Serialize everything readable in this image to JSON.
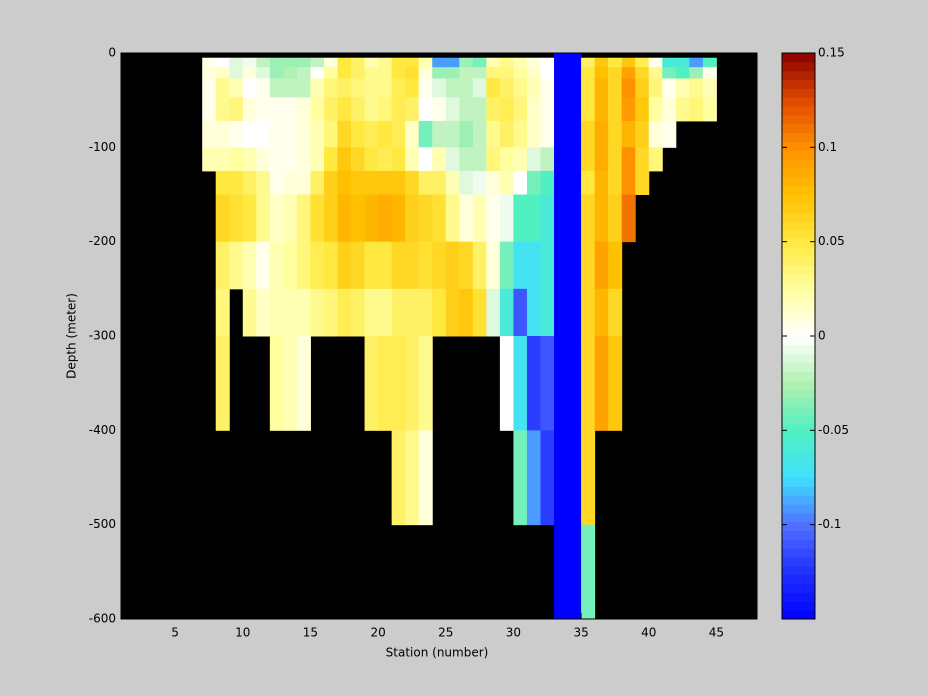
{
  "chart_data": {
    "type": "heatmap",
    "xlabel": "Station (number)",
    "ylabel": "Depth (meter)",
    "xlim": [
      1,
      48
    ],
    "ylim": [
      -600,
      0
    ],
    "xticks": [
      5,
      10,
      15,
      20,
      25,
      30,
      35,
      40,
      45
    ],
    "yticks": [
      0,
      -100,
      -200,
      -300,
      -400,
      -500,
      -600
    ],
    "clim": [
      -0.15,
      0.15
    ],
    "cticks": [
      -0.1,
      -0.05,
      0,
      0.05,
      0.1,
      0.15
    ],
    "colormap": [
      "#0000ff",
      "#2030ff",
      "#5070ff",
      "#40e0ff",
      "#50f0c0",
      "#b0f0b0",
      "#ffffff",
      "#ffffa0",
      "#ffe840",
      "#ffc000",
      "#ff9000",
      "#e04800",
      "#880000"
    ],
    "background": "#000000",
    "x_edges": [
      7,
      8,
      9,
      10,
      11,
      12,
      13,
      14,
      15,
      16,
      17,
      18,
      19,
      20,
      21,
      22,
      23,
      24,
      25,
      26,
      27,
      28,
      29,
      30,
      31,
      32,
      33,
      34,
      35,
      36,
      37,
      38,
      39,
      40,
      41,
      42,
      43,
      44,
      45
    ],
    "y_edges": [
      -5,
      -15,
      -27,
      -47,
      -72,
      -100,
      -125,
      -150,
      -200,
      -250,
      -300,
      -400,
      -500,
      -600
    ],
    "values": [
      [
        0.005,
        0.01,
        0.005,
        0.005,
        0.01,
        0.02,
        null,
        null,
        null,
        null,
        null,
        null,
        null
      ],
      [
        0,
        0.015,
        0.03,
        0.03,
        0.01,
        0.02,
        0.05,
        0.06,
        0.04,
        0.035,
        0.04,
        null,
        null
      ],
      [
        -0.01,
        -0.01,
        0.02,
        0.035,
        0.005,
        0.025,
        0.05,
        0.055,
        0.03,
        null,
        null,
        null,
        null
      ],
      [
        -0.005,
        0.01,
        0,
        0.01,
        0,
        0.02,
        0.04,
        0.05,
        0.02,
        0.03,
        null,
        null,
        null
      ],
      [
        -0.02,
        -0.01,
        0.005,
        0.005,
        0,
        0.01,
        0.03,
        0.03,
        0.005,
        0.015,
        null,
        null,
        null
      ],
      [
        -0.03,
        -0.03,
        -0.02,
        0.005,
        0.005,
        0.005,
        0.005,
        0.015,
        0.02,
        0.02,
        0.025,
        null,
        null
      ],
      [
        -0.03,
        -0.025,
        -0.02,
        0.005,
        0.005,
        0.005,
        0.01,
        0.02,
        0.025,
        0.02,
        0.02,
        null,
        null
      ],
      [
        -0.03,
        -0.02,
        -0.02,
        0.01,
        0.01,
        0.01,
        0.01,
        0.035,
        0.035,
        0.02,
        0.01,
        null,
        null
      ],
      [
        -0.02,
        0,
        0.02,
        0.025,
        0.02,
        0.02,
        0.04,
        0.055,
        0.045,
        0.03,
        null,
        null,
        null
      ],
      [
        0.01,
        0.025,
        0.035,
        0.04,
        0.035,
        0.05,
        0.065,
        0.065,
        0.05,
        0.035,
        null,
        null,
        null
      ],
      [
        0.05,
        0.05,
        0.04,
        0.05,
        0.06,
        0.07,
        0.075,
        0.08,
        0.065,
        0.045,
        null,
        null,
        null
      ],
      [
        0.04,
        0.04,
        0.035,
        0.04,
        0.05,
        0.06,
        0.07,
        0.075,
        0.06,
        0.04,
        null,
        null,
        null
      ],
      [
        0.02,
        0.03,
        0.03,
        0.03,
        0.045,
        0.05,
        0.07,
        0.08,
        0.05,
        0.03,
        0.04,
        null,
        null
      ],
      [
        0.03,
        0.03,
        0.03,
        0.035,
        0.05,
        0.045,
        0.07,
        0.085,
        0.05,
        0.03,
        0.045,
        null,
        null
      ],
      [
        0.05,
        0.05,
        0.045,
        0.045,
        0.045,
        0.05,
        0.07,
        0.08,
        0.06,
        0.04,
        0.045,
        0.04,
        null
      ],
      [
        0.05,
        0.055,
        0.05,
        0.04,
        0.015,
        0.02,
        0.06,
        0.065,
        0.06,
        0.04,
        0.04,
        0.03,
        null
      ],
      [
        0.02,
        0.01,
        0.005,
        0,
        -0.04,
        0,
        0.04,
        0.06,
        0.055,
        0.04,
        0.03,
        0.01,
        null
      ],
      [
        -0.09,
        -0.03,
        -0.01,
        0.005,
        -0.02,
        0.02,
        0.04,
        0.055,
        0.06,
        0.05,
        null,
        null,
        null
      ],
      [
        -0.09,
        -0.03,
        -0.02,
        -0.01,
        -0.02,
        -0.01,
        0.02,
        0.03,
        0.065,
        0.065,
        null,
        null,
        null
      ],
      [
        -0.03,
        -0.02,
        -0.02,
        -0.02,
        -0.03,
        -0.02,
        -0.01,
        0.01,
        0.06,
        0.07,
        null,
        null,
        null
      ],
      [
        -0.04,
        -0.02,
        -0.01,
        -0.02,
        -0.02,
        -0.02,
        -0.005,
        0.02,
        0.04,
        0.055,
        null,
        null,
        null
      ],
      [
        0.02,
        0.035,
        0.05,
        0.04,
        0.03,
        0.035,
        0.01,
        0.005,
        0.01,
        -0.01,
        null,
        null,
        null
      ],
      [
        0.03,
        0.035,
        0.04,
        0.045,
        0.04,
        0.025,
        0.02,
        -0.005,
        -0.04,
        -0.06,
        0,
        null,
        null
      ],
      [
        0.02,
        0.025,
        0.03,
        0.035,
        0.03,
        0.02,
        0,
        -0.05,
        -0.07,
        -0.11,
        -0.07,
        -0.04,
        null
      ],
      [
        0.01,
        0.015,
        0.02,
        0.015,
        0.015,
        -0.01,
        -0.04,
        -0.05,
        -0.07,
        -0.07,
        -0.12,
        -0.09,
        null
      ],
      [
        0,
        0,
        0.005,
        0.005,
        0.005,
        -0.02,
        -0.05,
        -0.06,
        -0.06,
        -0.06,
        -0.11,
        -0.12,
        null
      ],
      [
        -0.15,
        -0.15,
        -0.15,
        -0.15,
        -0.15,
        -0.15,
        -0.15,
        -0.15,
        -0.15,
        -0.15,
        -0.15,
        -0.15,
        -0.15
      ],
      [
        -0.15,
        -0.15,
        -0.15,
        -0.15,
        -0.15,
        -0.15,
        -0.15,
        -0.15,
        -0.15,
        -0.15,
        -0.15,
        -0.15,
        -0.15
      ],
      [
        0.04,
        0.05,
        0.05,
        0.05,
        0.06,
        0.06,
        0.05,
        0.06,
        0.06,
        0.06,
        0.06,
        0.06,
        -0.04
      ],
      [
        0.07,
        0.075,
        0.08,
        0.08,
        0.085,
        0.085,
        0.08,
        0.08,
        0.09,
        0.08,
        0.09,
        null,
        null
      ],
      [
        0.05,
        0.06,
        0.06,
        0.06,
        0.06,
        0.06,
        0.06,
        0.065,
        0.075,
        0.06,
        0.07,
        null,
        null
      ],
      [
        0.07,
        0.09,
        0.1,
        0.095,
        0.08,
        0.1,
        0.1,
        0.11,
        null,
        null,
        null,
        null,
        null
      ],
      [
        0.045,
        0.06,
        0.065,
        0.07,
        0.065,
        0.06,
        0.06,
        null,
        null,
        null,
        null,
        null,
        null
      ],
      [
        0.005,
        0.03,
        0.035,
        0.025,
        0.01,
        0.035,
        null,
        null,
        null,
        null,
        null,
        null,
        null
      ],
      [
        -0.06,
        -0.04,
        0.005,
        0.01,
        0.005,
        null,
        null,
        null,
        null,
        null,
        null,
        null,
        null
      ],
      [
        -0.06,
        -0.05,
        0.02,
        0.03,
        null,
        null,
        null,
        null,
        null,
        null,
        null,
        null,
        null
      ],
      [
        -0.09,
        -0.03,
        0.03,
        0.035,
        null,
        null,
        null,
        null,
        null,
        null,
        null,
        null,
        null
      ],
      [
        -0.05,
        0.005,
        0.02,
        0.025,
        null,
        null,
        null,
        null,
        null,
        null,
        null,
        null,
        null
      ]
    ]
  }
}
